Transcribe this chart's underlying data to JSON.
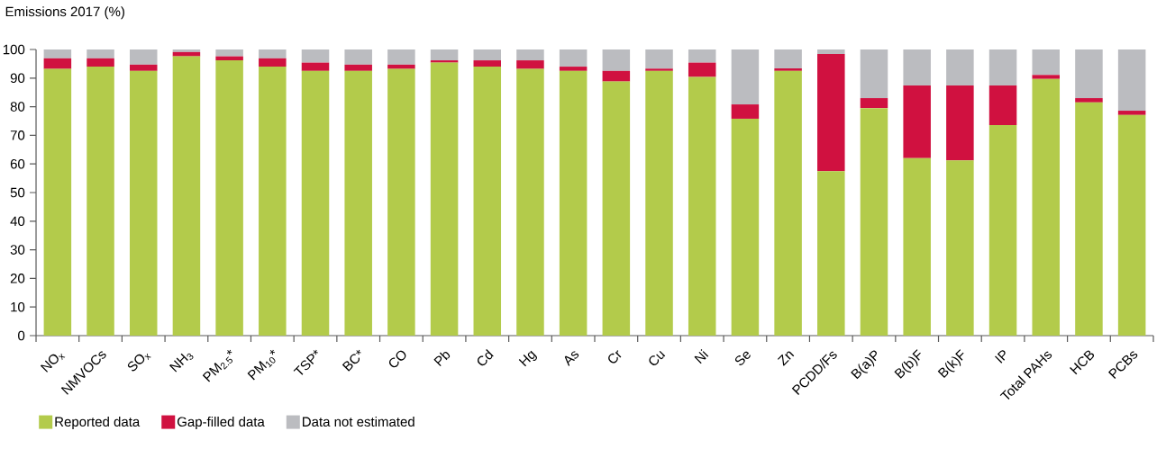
{
  "chart_data": {
    "type": "bar",
    "stacked": true,
    "ylabel": "Emissions 2017 (%)",
    "categories": [
      "NO$_{x}$",
      "NMVOCs",
      "SO$_{x}$",
      "NH$_{3}$",
      "PM$_{2.5}$*",
      "PM$_{10}$*",
      "TSP*",
      "BC*",
      "CO",
      "Pb",
      "Cd",
      "Hg",
      "As",
      "Cr",
      "Cu",
      "Ni",
      "Se",
      "Zn",
      "PCDD/Fs",
      "B(a)P",
      "B(b)F",
      "B(k)F",
      "IP",
      "Total PAHs",
      "HCB",
      "PCBs"
    ],
    "series": [
      {
        "name": "Reported data",
        "color": "#b3cb4b",
        "values": [
          93.2,
          94.0,
          92.5,
          97.6,
          96.2,
          94.0,
          92.5,
          92.5,
          93.2,
          95.4,
          94.0,
          93.2,
          92.5,
          88.8,
          92.5,
          90.4,
          75.8,
          92.5,
          57.5,
          79.5,
          62.0,
          61.2,
          73.6,
          89.7,
          81.5,
          77.1
        ]
      },
      {
        "name": "Gap-filled data",
        "color": "#d01140",
        "values": [
          3.7,
          2.9,
          2.2,
          1.5,
          1.4,
          2.9,
          2.9,
          2.2,
          1.5,
          0.8,
          2.2,
          3.0,
          1.5,
          3.7,
          0.8,
          5.0,
          5.0,
          0.9,
          40.9,
          3.5,
          25.4,
          26.2,
          13.8,
          1.4,
          1.5,
          1.5
        ]
      },
      {
        "name": "Data not estimated",
        "color": "#bbbcc0",
        "values": [
          3.1,
          3.1,
          5.3,
          0.9,
          2.4,
          3.1,
          4.6,
          5.3,
          5.3,
          3.8,
          3.8,
          3.8,
          6.0,
          7.5,
          6.7,
          4.6,
          19.2,
          6.6,
          1.6,
          17.0,
          12.6,
          12.6,
          12.6,
          8.9,
          17.0,
          21.4
        ]
      }
    ],
    "ylim": [
      0,
      100
    ],
    "yticks": [
      0,
      10,
      20,
      30,
      40,
      50,
      60,
      70,
      80,
      90,
      100
    ],
    "legend": "bottom"
  }
}
